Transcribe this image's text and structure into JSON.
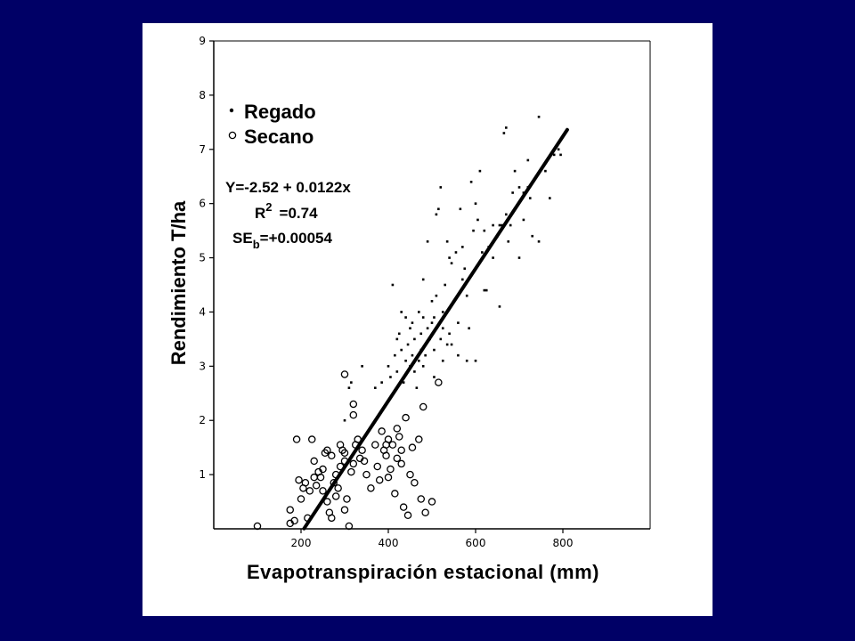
{
  "colors": {
    "background": "#000066",
    "panel": "#ffffff",
    "ink": "#000000"
  },
  "chart_data": {
    "type": "scatter",
    "title": "",
    "xlabel": "Evapotranspiración estacional (mm)",
    "ylabel": "Rendimiento T/ha",
    "xlim": [
      0,
      1000
    ],
    "ylim": [
      0,
      9
    ],
    "xticks": [
      200,
      400,
      600,
      800
    ],
    "yticks": [
      1,
      2,
      3,
      4,
      5,
      6,
      7,
      8,
      9
    ],
    "grid": false,
    "legend_position": "top-left",
    "legend": [
      {
        "name": "Regado",
        "marker": "dot"
      },
      {
        "name": "Secano",
        "marker": "circle"
      }
    ],
    "equation": {
      "line1": "Y=-2.52 + 0.0122x",
      "r2_label": "R",
      "r2_sup": "2",
      "r2_value": "=0.74",
      "se_label": "SE",
      "se_sub": "b",
      "se_value": "=+0.00054"
    },
    "regression": {
      "intercept": -2.52,
      "slope": 0.0122,
      "x_from": 207,
      "x_to": 810
    },
    "series": [
      {
        "name": "Regado",
        "marker": "dot",
        "points": [
          [
            310,
            2.6
          ],
          [
            315,
            2.7
          ],
          [
            340,
            3.0
          ],
          [
            300,
            2.0
          ],
          [
            370,
            2.6
          ],
          [
            385,
            2.7
          ],
          [
            400,
            3.0
          ],
          [
            405,
            2.8
          ],
          [
            410,
            4.5
          ],
          [
            415,
            3.2
          ],
          [
            420,
            3.5
          ],
          [
            420,
            2.9
          ],
          [
            425,
            3.6
          ],
          [
            430,
            3.3
          ],
          [
            430,
            4.0
          ],
          [
            435,
            2.7
          ],
          [
            440,
            3.1
          ],
          [
            440,
            3.9
          ],
          [
            445,
            3.4
          ],
          [
            450,
            3.0
          ],
          [
            450,
            3.7
          ],
          [
            455,
            3.2
          ],
          [
            455,
            3.8
          ],
          [
            460,
            3.5
          ],
          [
            460,
            2.9
          ],
          [
            465,
            2.6
          ],
          [
            470,
            3.1
          ],
          [
            470,
            4.0
          ],
          [
            475,
            3.6
          ],
          [
            475,
            3.3
          ],
          [
            480,
            3.9
          ],
          [
            480,
            4.6
          ],
          [
            485,
            3.2
          ],
          [
            490,
            5.3
          ],
          [
            490,
            3.7
          ],
          [
            495,
            3.5
          ],
          [
            500,
            4.2
          ],
          [
            500,
            3.8
          ],
          [
            505,
            3.9
          ],
          [
            505,
            3.3
          ],
          [
            510,
            5.8
          ],
          [
            510,
            4.3
          ],
          [
            515,
            5.9
          ],
          [
            520,
            6.3
          ],
          [
            520,
            3.5
          ],
          [
            525,
            3.1
          ],
          [
            525,
            4.0
          ],
          [
            530,
            4.5
          ],
          [
            535,
            5.3
          ],
          [
            535,
            3.4
          ],
          [
            540,
            5.0
          ],
          [
            540,
            3.6
          ],
          [
            545,
            4.9
          ],
          [
            550,
            4.2
          ],
          [
            555,
            5.1
          ],
          [
            560,
            3.8
          ],
          [
            560,
            3.2
          ],
          [
            565,
            5.9
          ],
          [
            570,
            4.6
          ],
          [
            575,
            4.8
          ],
          [
            580,
            3.1
          ],
          [
            585,
            3.7
          ],
          [
            590,
            6.4
          ],
          [
            595,
            5.5
          ],
          [
            600,
            3.1
          ],
          [
            600,
            6.0
          ],
          [
            605,
            5.7
          ],
          [
            610,
            6.6
          ],
          [
            615,
            5.1
          ],
          [
            620,
            4.4
          ],
          [
            620,
            5.5
          ],
          [
            625,
            4.4
          ],
          [
            630,
            5.2
          ],
          [
            640,
            5.6
          ],
          [
            650,
            5.4
          ],
          [
            655,
            4.1
          ],
          [
            660,
            5.6
          ],
          [
            665,
            7.3
          ],
          [
            670,
            7.4
          ],
          [
            670,
            5.8
          ],
          [
            675,
            5.3
          ],
          [
            680,
            5.6
          ],
          [
            685,
            6.2
          ],
          [
            690,
            6.6
          ],
          [
            700,
            6.3
          ],
          [
            700,
            5.0
          ],
          [
            710,
            5.7
          ],
          [
            720,
            6.3
          ],
          [
            725,
            6.1
          ],
          [
            730,
            5.4
          ],
          [
            745,
            5.3
          ],
          [
            745,
            7.6
          ],
          [
            760,
            6.6
          ],
          [
            770,
            6.1
          ],
          [
            780,
            6.9
          ],
          [
            790,
            7.0
          ],
          [
            795,
            6.9
          ],
          [
            570,
            5.2
          ],
          [
            640,
            5.0
          ],
          [
            690,
            5.9
          ],
          [
            710,
            6.2
          ],
          [
            480,
            3.0
          ],
          [
            505,
            2.8
          ],
          [
            525,
            3.7
          ],
          [
            545,
            3.4
          ],
          [
            580,
            4.3
          ],
          [
            600,
            4.8
          ],
          [
            655,
            5.6
          ],
          [
            720,
            6.8
          ]
        ]
      },
      {
        "name": "Secano",
        "marker": "circle",
        "points": [
          [
            100,
            0.05
          ],
          [
            175,
            0.1
          ],
          [
            175,
            0.35
          ],
          [
            185,
            0.15
          ],
          [
            190,
            1.65
          ],
          [
            195,
            0.9
          ],
          [
            200,
            0.55
          ],
          [
            205,
            0.75
          ],
          [
            210,
            0.85
          ],
          [
            215,
            0.2
          ],
          [
            220,
            0.7
          ],
          [
            225,
            1.65
          ],
          [
            230,
            1.25
          ],
          [
            235,
            0.8
          ],
          [
            240,
            1.05
          ],
          [
            245,
            0.95
          ],
          [
            250,
            0.7
          ],
          [
            255,
            1.4
          ],
          [
            260,
            1.45
          ],
          [
            265,
            0.3
          ],
          [
            270,
            0.2
          ],
          [
            270,
            1.35
          ],
          [
            275,
            0.85
          ],
          [
            280,
            0.6
          ],
          [
            285,
            0.75
          ],
          [
            290,
            1.15
          ],
          [
            295,
            1.45
          ],
          [
            300,
            1.4
          ],
          [
            300,
            0.35
          ],
          [
            305,
            0.55
          ],
          [
            310,
            0.05
          ],
          [
            315,
            1.05
          ],
          [
            320,
            1.2
          ],
          [
            325,
            1.55
          ],
          [
            330,
            1.65
          ],
          [
            335,
            1.3
          ],
          [
            340,
            1.45
          ],
          [
            345,
            1.25
          ],
          [
            300,
            2.85
          ],
          [
            320,
            2.3
          ],
          [
            320,
            2.1
          ],
          [
            360,
            0.75
          ],
          [
            370,
            1.55
          ],
          [
            380,
            0.9
          ],
          [
            385,
            1.8
          ],
          [
            390,
            1.45
          ],
          [
            395,
            1.35
          ],
          [
            400,
            1.65
          ],
          [
            400,
            0.95
          ],
          [
            405,
            1.1
          ],
          [
            410,
            1.55
          ],
          [
            415,
            0.65
          ],
          [
            420,
            1.3
          ],
          [
            420,
            1.85
          ],
          [
            425,
            1.7
          ],
          [
            430,
            1.45
          ],
          [
            435,
            0.4
          ],
          [
            440,
            2.05
          ],
          [
            445,
            0.25
          ],
          [
            450,
            1.0
          ],
          [
            455,
            1.5
          ],
          [
            460,
            0.85
          ],
          [
            470,
            1.65
          ],
          [
            475,
            0.55
          ],
          [
            480,
            2.25
          ],
          [
            485,
            0.3
          ],
          [
            500,
            0.5
          ],
          [
            515,
            2.7
          ],
          [
            230,
            0.95
          ],
          [
            260,
            0.5
          ],
          [
            280,
            1.0
          ],
          [
            290,
            1.55
          ],
          [
            350,
            1.0
          ],
          [
            375,
            1.15
          ],
          [
            395,
            1.55
          ],
          [
            430,
            1.2
          ],
          [
            250,
            1.1
          ],
          [
            300,
            1.25
          ]
        ]
      }
    ]
  }
}
